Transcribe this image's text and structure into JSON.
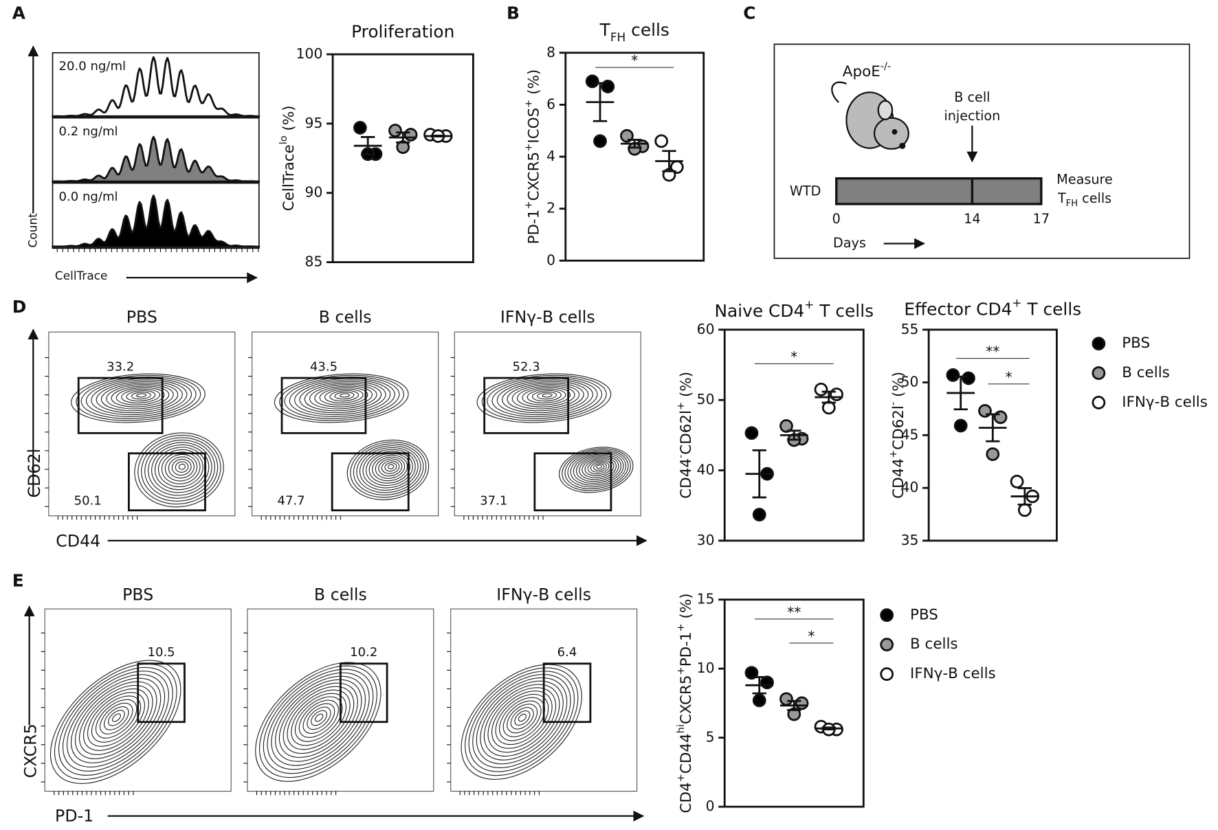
{
  "panel_labels": [
    "A",
    "B",
    "C",
    "D",
    "E"
  ],
  "panel_a": {
    "histogram_labels": [
      "20.0 ng/ml",
      "0.2 ng/ml",
      "0.0 ng/ml"
    ],
    "y_label": "Count",
    "x_label": "CellTrace"
  },
  "panel_c": {
    "strain": [
      {
        "text": "ApoE"
      },
      {
        "text": "-/-",
        "shift": "super"
      }
    ],
    "event": [
      "B cell",
      "injection"
    ],
    "diet": "WTD",
    "days": [
      0,
      14,
      17
    ],
    "measure": "Measure",
    "measure_target": [
      {
        "text": "T"
      },
      {
        "text": "FH",
        "shift": "sub"
      },
      {
        "text": " cells"
      }
    ],
    "axis_label": "Days"
  },
  "flow_d": {
    "x_label": "CD44",
    "y_label": "CD62l",
    "plots": [
      {
        "title": "PBS",
        "gates": [
          33.2,
          50.1
        ]
      },
      {
        "title": "B cells",
        "gates": [
          43.5,
          47.7
        ]
      },
      {
        "title": "IFNγ-B cells",
        "gates": [
          52.3,
          37.1
        ]
      }
    ]
  },
  "flow_e": {
    "x_label": "PD-1",
    "y_label": "CXCR5",
    "plots": [
      {
        "title": "PBS",
        "gate": 10.5
      },
      {
        "title": "B cells",
        "gate": 10.2
      },
      {
        "title": "IFNγ-B cells",
        "gate": 6.4
      }
    ]
  },
  "chart_data": [
    {
      "type": "dot",
      "title": "Proliferation",
      "y_label": [
        {
          "text": "CellTrace"
        },
        {
          "text": "lo",
          "shift": "super"
        },
        {
          "text": " (%)"
        }
      ],
      "ylim": [
        85,
        100
      ],
      "yticks": [
        85,
        90,
        95,
        100
      ],
      "series": [
        {
          "color": "#000000",
          "values": [
            94.7,
            92.8,
            92.8
          ],
          "mean": 93.4,
          "sem": 0.63
        },
        {
          "color": "#999999",
          "values": [
            94.5,
            94.2,
            93.3
          ],
          "mean": 94.0,
          "sem": 0.36
        },
        {
          "color": "#ffffff",
          "values": [
            94.2,
            94.1,
            94.1
          ],
          "mean": 94.1,
          "sem": 0.03
        }
      ]
    },
    {
      "type": "dot",
      "title": [
        {
          "text": "T"
        },
        {
          "text": "FH",
          "shift": "sub"
        },
        {
          "text": " cells"
        }
      ],
      "y_label": [
        {
          "text": "PD-1"
        },
        {
          "text": "+",
          "shift": "super"
        },
        {
          "text": "CXCR5"
        },
        {
          "text": "+",
          "shift": "super"
        },
        {
          "text": "ICOS"
        },
        {
          "text": "+",
          "shift": "super"
        },
        {
          "text": " (%)"
        }
      ],
      "ylim": [
        0,
        8
      ],
      "yticks": [
        0,
        2,
        4,
        6,
        8
      ],
      "series": [
        {
          "color": "#000000",
          "values": [
            6.9,
            6.7,
            4.6
          ],
          "mean": 6.1,
          "sem": 0.73
        },
        {
          "color": "#999999",
          "values": [
            4.8,
            4.4,
            4.3
          ],
          "mean": 4.5,
          "sem": 0.15
        },
        {
          "color": "#ffffff",
          "values": [
            4.6,
            3.6,
            3.3
          ],
          "mean": 3.83,
          "sem": 0.39
        }
      ],
      "significance": [
        {
          "from": 0,
          "to": 2,
          "label": "*"
        }
      ]
    },
    {
      "type": "dot",
      "title": [
        {
          "text": "Naive CD4"
        },
        {
          "text": "+",
          "shift": "super"
        },
        {
          "text": " T cells"
        }
      ],
      "y_label": [
        {
          "text": "CD44"
        },
        {
          "text": "-",
          "shift": "super"
        },
        {
          "text": "CD62l"
        },
        {
          "text": "+",
          "shift": "super"
        },
        {
          "text": " (%)"
        }
      ],
      "ylim": [
        30,
        60
      ],
      "yticks": [
        30,
        40,
        50,
        60
      ],
      "series": [
        {
          "color": "#000000",
          "values": [
            45.3,
            39.5,
            33.7
          ],
          "mean": 39.5,
          "sem": 3.35
        },
        {
          "color": "#999999",
          "values": [
            46.3,
            44.5,
            44.3
          ],
          "mean": 45.0,
          "sem": 0.64
        },
        {
          "color": "#ffffff",
          "values": [
            51.5,
            50.8,
            48.9
          ],
          "mean": 50.4,
          "sem": 0.78
        }
      ],
      "significance": [
        {
          "from": 0,
          "to": 2,
          "label": "*"
        }
      ]
    },
    {
      "type": "dot",
      "title": [
        {
          "text": "Effector CD4"
        },
        {
          "text": "+",
          "shift": "super"
        },
        {
          "text": " T cells"
        }
      ],
      "y_label": [
        {
          "text": "CD44"
        },
        {
          "text": "+",
          "shift": "super"
        },
        {
          "text": "CD62l"
        },
        {
          "text": "-",
          "shift": "super"
        },
        {
          "text": " (%)"
        }
      ],
      "ylim": [
        35,
        55
      ],
      "yticks": [
        35,
        40,
        45,
        50,
        55
      ],
      "legend": "right",
      "series": [
        {
          "name": "PBS",
          "color": "#000000",
          "values": [
            50.7,
            50.4,
            45.9
          ],
          "mean": 49.0,
          "sem": 1.55
        },
        {
          "name": "B cells",
          "color": "#999999",
          "values": [
            47.3,
            46.7,
            43.2
          ],
          "mean": 45.7,
          "sem": 1.28
        },
        {
          "name": "IFNγ-B cells",
          "color": "#ffffff",
          "values": [
            40.6,
            39.2,
            37.9
          ],
          "mean": 39.2,
          "sem": 0.78
        }
      ],
      "significance": [
        {
          "from": 0,
          "to": 2,
          "label": "**"
        },
        {
          "from": 1,
          "to": 2,
          "label": "*"
        }
      ]
    },
    {
      "type": "dot",
      "y_label": [
        {
          "text": "CD4"
        },
        {
          "text": "+",
          "shift": "super"
        },
        {
          "text": "CD44"
        },
        {
          "text": "hi",
          "shift": "super"
        },
        {
          "text": "CXCR5"
        },
        {
          "text": "+",
          "shift": "super"
        },
        {
          "text": "PD-1"
        },
        {
          "text": "+",
          "shift": "super"
        },
        {
          "text": " (%)"
        }
      ],
      "ylim": [
        0,
        15
      ],
      "yticks": [
        0,
        5,
        10,
        15
      ],
      "legend": "right",
      "series": [
        {
          "name": "PBS",
          "color": "#000000",
          "values": [
            9.7,
            9.0,
            7.7
          ],
          "mean": 8.8,
          "sem": 0.59
        },
        {
          "name": "B cells",
          "color": "#999999",
          "values": [
            7.8,
            7.5,
            6.7
          ],
          "mean": 7.33,
          "sem": 0.33
        },
        {
          "name": "IFNγ-B cells",
          "color": "#ffffff",
          "values": [
            5.8,
            5.6,
            5.6
          ],
          "mean": 5.67,
          "sem": 0.07
        }
      ],
      "significance": [
        {
          "from": 0,
          "to": 2,
          "label": "**"
        },
        {
          "from": 1,
          "to": 2,
          "label": "*"
        }
      ]
    }
  ]
}
